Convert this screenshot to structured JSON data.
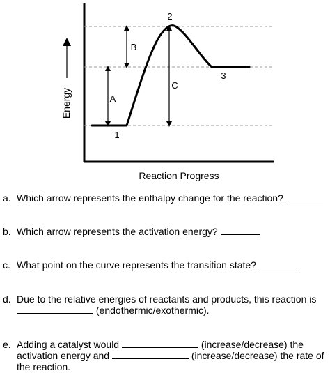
{
  "diagram": {
    "y_axis_label": "Energy",
    "x_axis_label": "Reaction Progress",
    "point_labels": [
      "1",
      "2",
      "3"
    ],
    "arrow_labels": [
      "A",
      "B",
      "C"
    ]
  },
  "questions": [
    {
      "letter": "a.",
      "text": "Which arrow represents the enthalpy change for the reaction?"
    },
    {
      "letter": "b.",
      "text": "Which arrow represents the activation energy?"
    },
    {
      "letter": "c.",
      "text": "What point on the curve represents the transition state?"
    },
    {
      "letter": "d.",
      "line1": "Due to the relative energies of reactants and products, this reaction is",
      "line2": "(endothermic/exothermic)."
    },
    {
      "letter": "e.",
      "line1_a": "Adding a catalyst would",
      "line1_b": "(increase/decrease) the",
      "line2_a": "activation energy and",
      "line2_b": "(increase/decrease) the rate of",
      "line3": "the reaction."
    }
  ]
}
